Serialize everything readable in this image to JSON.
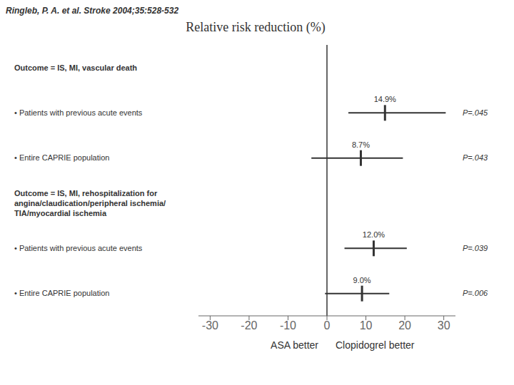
{
  "chart_data": {
    "type": "forest",
    "title": "Relative risk reduction (%)",
    "subtitle": "Ringleb, P. A. et al. Stroke 2004;35:528-532",
    "annotations": [
      "ASA better",
      "Clopidogrel better"
    ],
    "xlim": [
      -33,
      33
    ],
    "xticks": [
      -30,
      -20,
      -10,
      0,
      10,
      20,
      30
    ],
    "reference_x": 0,
    "groups": [
      {
        "header": [
          "Outcome = IS, MI, vascular death"
        ],
        "categories": [
          "• Patients with previous acute events",
          "• Entire CAPRIE population"
        ],
        "values": [
          14.9,
          8.7
        ],
        "ci_low": [
          5.5,
          -4.0
        ],
        "ci_high": [
          30.5,
          19.5
        ],
        "value_labels": [
          "14.9%",
          "8.7%"
        ],
        "pvalues": [
          "P=.045",
          "P=.043"
        ]
      },
      {
        "header": [
          "Outcome = IS, MI, rehospitalization for",
          "angina/claudication/peripheral ischemia/",
          "TIA/myocardial ischemia"
        ],
        "categories": [
          "• Patients with previous acute events",
          "• Entire CAPRIE population"
        ],
        "values": [
          12.0,
          9.0
        ],
        "ci_low": [
          4.5,
          -0.5
        ],
        "ci_high": [
          20.5,
          16.0
        ],
        "value_labels": [
          "12.0%",
          "9.0%"
        ],
        "pvalues": [
          "P=.039",
          "P=.006"
        ]
      }
    ]
  }
}
